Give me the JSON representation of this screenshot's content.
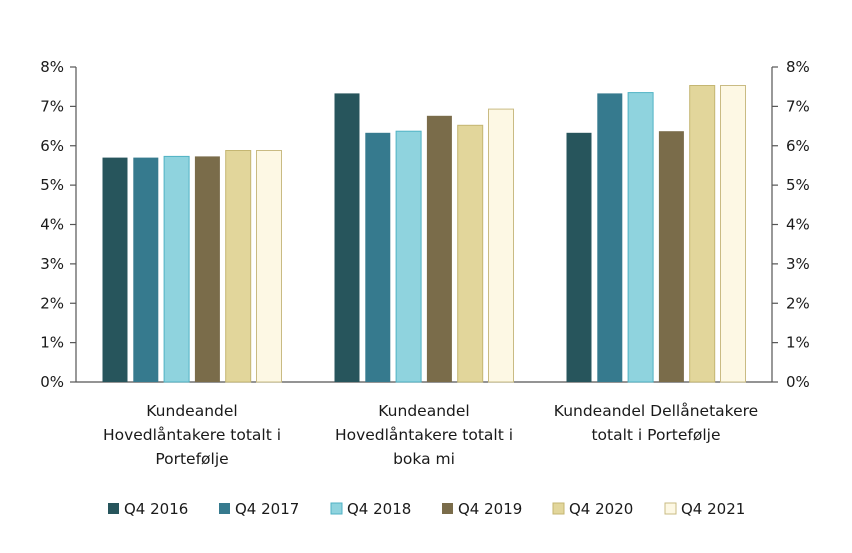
{
  "chart_data": {
    "type": "bar",
    "categories": [
      [
        "Kundeandel",
        "Hovedlåntakere totalt i",
        "Portefølje"
      ],
      [
        "Kundeandel",
        "Hovedlåntakere totalt i",
        "boka mi"
      ],
      [
        "Kundeandel Dellånetakere",
        "totalt i Portefølje"
      ]
    ],
    "series": [
      {
        "name": "Q4 2016",
        "color": "#27555c",
        "values": [
          5.7,
          7.33,
          6.33
        ]
      },
      {
        "name": "Q4 2017",
        "color": "#367a8e",
        "values": [
          5.7,
          6.33,
          7.33
        ]
      },
      {
        "name": "Q4 2018",
        "color": "#8fd3de",
        "values": [
          5.73,
          6.37,
          7.35
        ]
      },
      {
        "name": "Q4 2019",
        "color": "#7a6c4a",
        "values": [
          5.73,
          6.76,
          6.37
        ]
      },
      {
        "name": "Q4 2020",
        "color": "#e2d69b",
        "values": [
          5.88,
          6.52,
          7.53
        ]
      },
      {
        "name": "Q4 2021",
        "color": "#fdf8e4",
        "values": [
          5.88,
          6.93,
          7.53
        ]
      }
    ],
    "ylim": [
      0,
      8
    ],
    "yticks": [
      "0%",
      "1%",
      "2%",
      "3%",
      "4%",
      "5%",
      "6%",
      "7%",
      "8%"
    ],
    "title": "",
    "xlabel": "",
    "ylabel": "",
    "legend_position": "bottom",
    "grid": false
  }
}
